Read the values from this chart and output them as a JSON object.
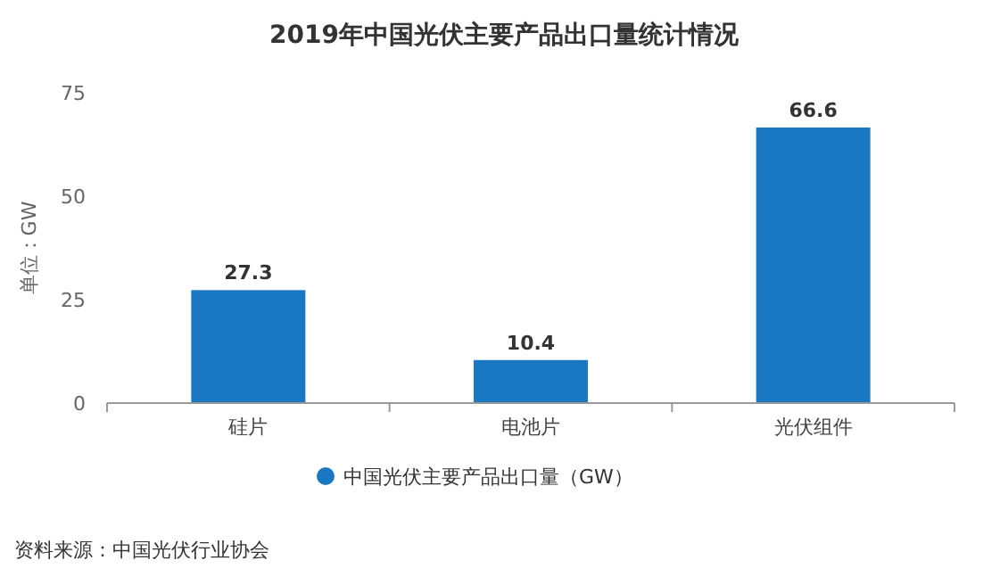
{
  "chart_data": {
    "type": "bar",
    "title": "2019年中国光伏主要产品出口量统计情况",
    "ylabel": "单位：GW",
    "categories": [
      "硅片",
      "电池片",
      "光伏组件"
    ],
    "series": [
      {
        "name": "中国光伏主要产品出口量（GW）",
        "color": "#1a78c2",
        "values": [
          27.3,
          10.4,
          66.6
        ]
      }
    ],
    "ylim": [
      0,
      75
    ],
    "yticks": [
      0,
      25,
      50,
      75
    ],
    "data_labels": true,
    "grid": false,
    "legend": "bottom",
    "annotations": [
      "资料来源：中国光伏行业协会"
    ]
  }
}
